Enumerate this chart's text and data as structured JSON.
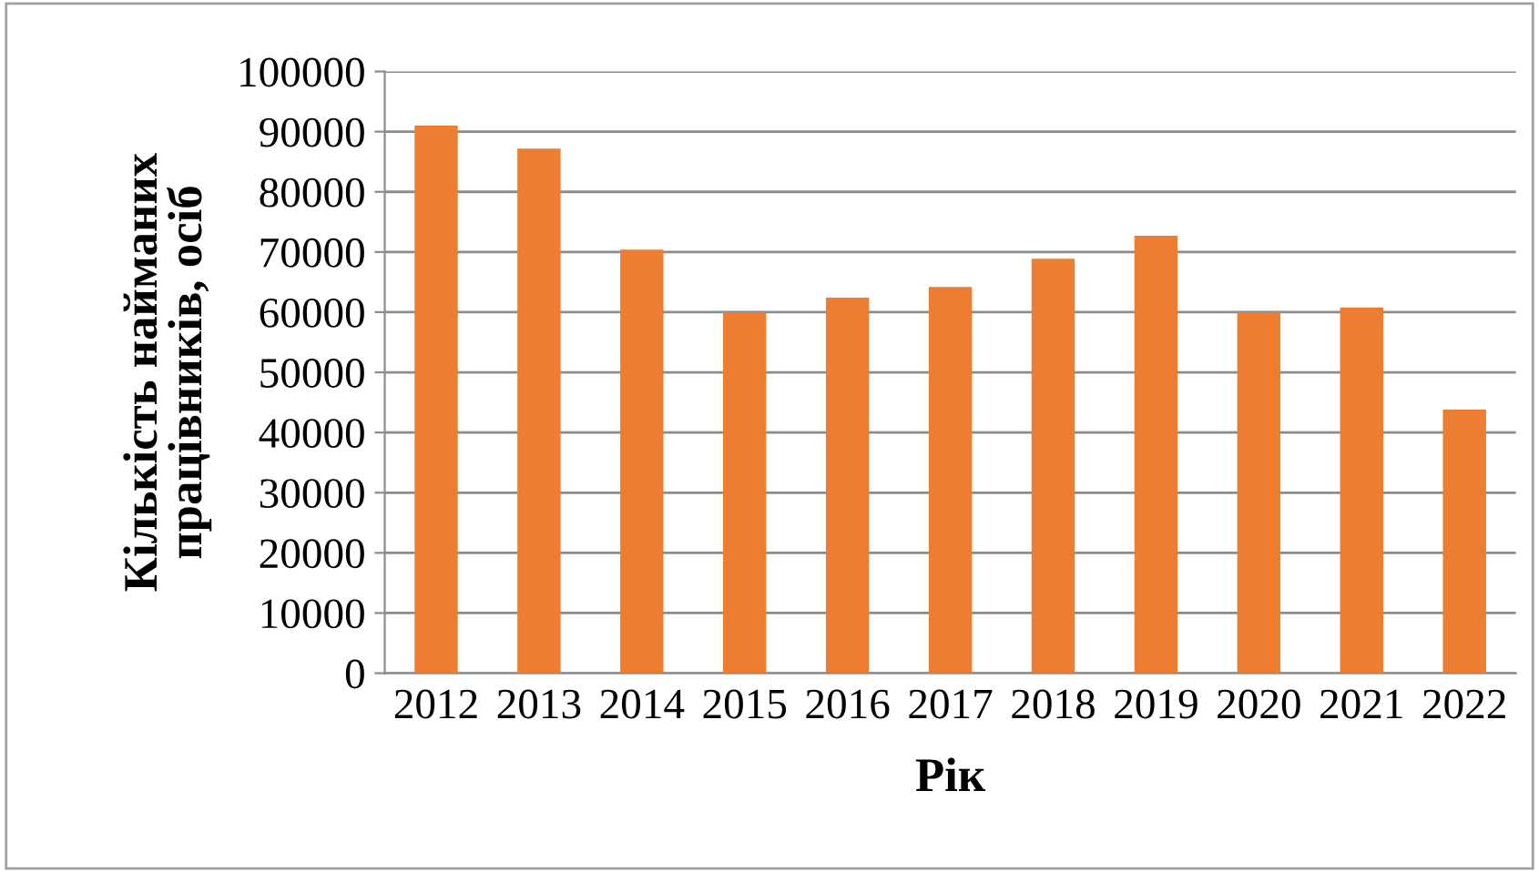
{
  "chart_data": {
    "type": "bar",
    "xlabel": "Рік",
    "ylabel": "Кількість найманих\nпрацівників, осіб",
    "categories": [
      "2012",
      "2013",
      "2014",
      "2015",
      "2016",
      "2017",
      "2018",
      "2019",
      "2020",
      "2021",
      "2022"
    ],
    "values": [
      91000,
      87200,
      70400,
      60000,
      62400,
      64200,
      68900,
      72700,
      60000,
      60800,
      43800
    ],
    "color": "#ed7d31",
    "ylim": [
      0,
      100000
    ],
    "yticks": [
      0,
      10000,
      20000,
      30000,
      40000,
      50000,
      60000,
      70000,
      80000,
      90000,
      100000
    ],
    "grid": "y"
  }
}
